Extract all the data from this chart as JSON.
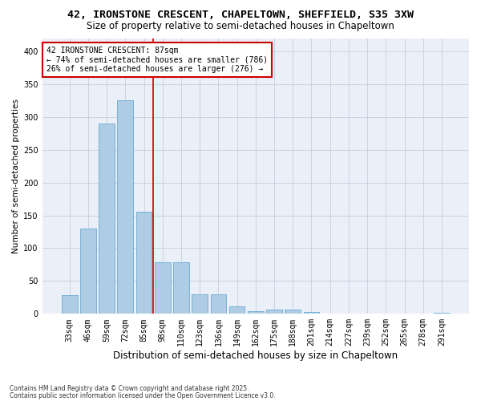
{
  "title1": "42, IRONSTONE CRESCENT, CHAPELTOWN, SHEFFIELD, S35 3XW",
  "title2": "Size of property relative to semi-detached houses in Chapeltown",
  "xlabel": "Distribution of semi-detached houses by size in Chapeltown",
  "ylabel": "Number of semi-detached properties",
  "categories": [
    "33sqm",
    "46sqm",
    "59sqm",
    "72sqm",
    "85sqm",
    "98sqm",
    "110sqm",
    "123sqm",
    "136sqm",
    "149sqm",
    "162sqm",
    "175sqm",
    "188sqm",
    "201sqm",
    "214sqm",
    "227sqm",
    "239sqm",
    "252sqm",
    "265sqm",
    "278sqm",
    "291sqm"
  ],
  "values": [
    28,
    130,
    290,
    325,
    155,
    78,
    78,
    30,
    30,
    12,
    4,
    6,
    6,
    3,
    0,
    0,
    1,
    0,
    0,
    0,
    2
  ],
  "bar_color": "#aecde4",
  "bar_edge_color": "#6aaad4",
  "annotation_title": "42 IRONSTONE CRESCENT: 87sqm",
  "annotation_line1": "← 74% of semi-detached houses are smaller (786)",
  "annotation_line2": "26% of semi-detached houses are larger (276) →",
  "annotation_box_color": "#ffffff",
  "annotation_box_edge": "#cc0000",
  "vline_color": "#cc0000",
  "grid_color": "#c8d4e4",
  "bg_color": "#eaeff8",
  "footnote1": "Contains HM Land Registry data © Crown copyright and database right 2025.",
  "footnote2": "Contains public sector information licensed under the Open Government Licence v3.0.",
  "ylim": [
    0,
    420
  ],
  "yticks": [
    0,
    50,
    100,
    150,
    200,
    250,
    300,
    350,
    400
  ],
  "title1_fontsize": 9.5,
  "title2_fontsize": 8.5,
  "xlabel_fontsize": 8.5,
  "ylabel_fontsize": 7.5,
  "tick_fontsize": 7,
  "annot_fontsize": 7,
  "footnote_fontsize": 5.5
}
